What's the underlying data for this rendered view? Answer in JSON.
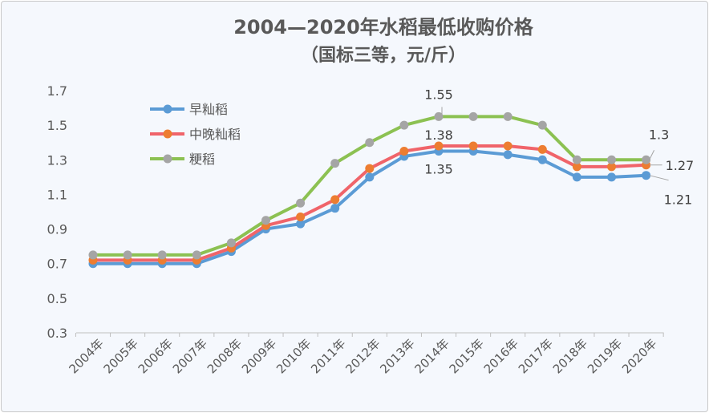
{
  "chart_data": {
    "type": "line",
    "title": "2004—2020年水稻最低收购价格",
    "subtitle": "（国标三等，元/斤）",
    "categories": [
      "2004年",
      "2005年",
      "2006年",
      "2007年",
      "2008年",
      "2009年",
      "2010年",
      "2011年",
      "2012年",
      "2013年",
      "2014年",
      "2015年",
      "2016年",
      "2017年",
      "2018年",
      "2019年",
      "2020年"
    ],
    "ylim": [
      0.3,
      1.7
    ],
    "yticks": [
      "0.3",
      "0.5",
      "0.7",
      "0.9",
      "1.1",
      "1.3",
      "1.5",
      "1.7"
    ],
    "grid": false,
    "legend": "top-left",
    "series": [
      {
        "name": "早籼稻",
        "line_color": "#5b9bd5",
        "marker_color": "#5b9bd5",
        "values": [
          0.7,
          0.7,
          0.7,
          0.7,
          0.77,
          0.9,
          0.93,
          1.02,
          1.2,
          1.32,
          1.35,
          1.35,
          1.33,
          1.3,
          1.2,
          1.2,
          1.21
        ]
      },
      {
        "name": "中晚籼稻",
        "line_color": "#f0646a",
        "marker_color": "#ed7d31",
        "values": [
          0.72,
          0.72,
          0.72,
          0.72,
          0.79,
          0.92,
          0.97,
          1.07,
          1.25,
          1.35,
          1.38,
          1.38,
          1.38,
          1.36,
          1.26,
          1.26,
          1.27
        ]
      },
      {
        "name": "粳稻",
        "line_color": "#8cc152",
        "marker_color": "#a5a5a5",
        "values": [
          0.75,
          0.75,
          0.75,
          0.75,
          0.82,
          0.95,
          1.05,
          1.28,
          1.4,
          1.5,
          1.55,
          1.55,
          1.55,
          1.5,
          1.3,
          1.3,
          1.3
        ]
      }
    ],
    "annotations": [
      {
        "text": "1.55",
        "series": 2,
        "index": 10
      },
      {
        "text": "1.38",
        "series": 1,
        "index": 10
      },
      {
        "text": "1.35",
        "series": 0,
        "index": 10
      },
      {
        "text": "1.3",
        "series": 2,
        "index": 16
      },
      {
        "text": "1.27",
        "series": 1,
        "index": 16
      },
      {
        "text": "1.21",
        "series": 0,
        "index": 16
      }
    ]
  }
}
